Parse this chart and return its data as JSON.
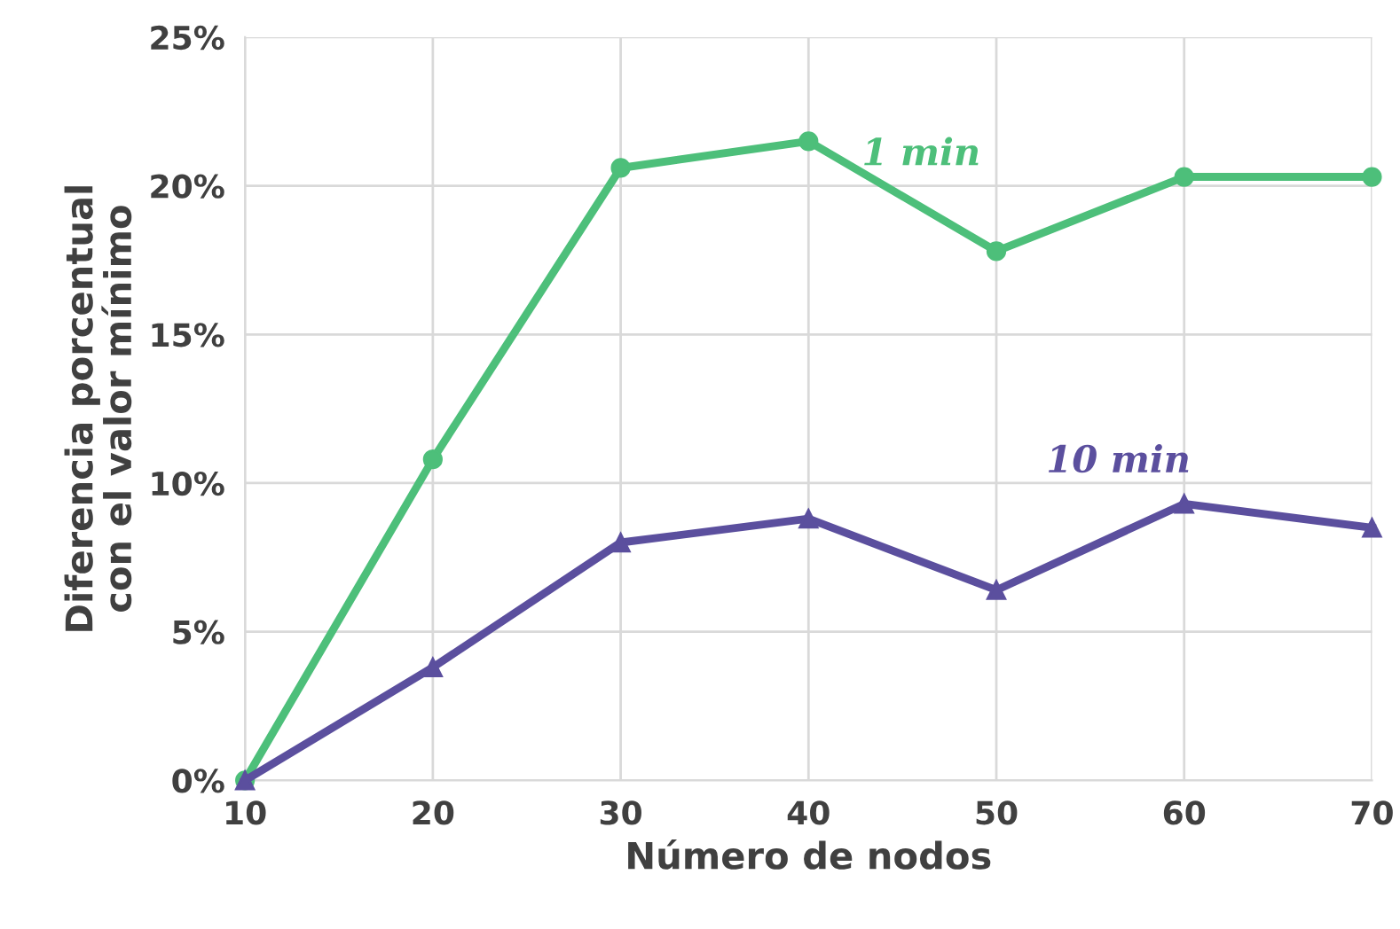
{
  "chart_data": {
    "type": "line",
    "xlabel": "Número de nodos",
    "ylabel": "Diferencia porcentual\ncon el valor mínimo",
    "x": [
      10,
      20,
      30,
      40,
      50,
      60,
      70
    ],
    "series": [
      {
        "name": "1 min",
        "color": "#4dbf7a",
        "marker": "circle",
        "values": [
          0,
          10.8,
          20.6,
          21.5,
          17.8,
          20.3,
          20.3
        ]
      },
      {
        "name": "10 min",
        "color": "#5b4f9e",
        "marker": "triangle",
        "values": [
          0,
          3.8,
          8.0,
          8.8,
          6.4,
          9.3,
          8.5
        ]
      }
    ],
    "xlim": [
      10,
      70
    ],
    "xticks": [
      10,
      20,
      30,
      40,
      50,
      60,
      70
    ],
    "ylim": [
      0,
      25
    ],
    "yticks": [
      {
        "value": 0,
        "label": "0%"
      },
      {
        "value": 5,
        "label": "5%"
      },
      {
        "value": 10,
        "label": "10%"
      },
      {
        "value": 15,
        "label": "15%"
      },
      {
        "value": 20,
        "label": "20%"
      },
      {
        "value": 25,
        "label": "25%"
      }
    ],
    "grid": true,
    "line_style": "solid"
  }
}
